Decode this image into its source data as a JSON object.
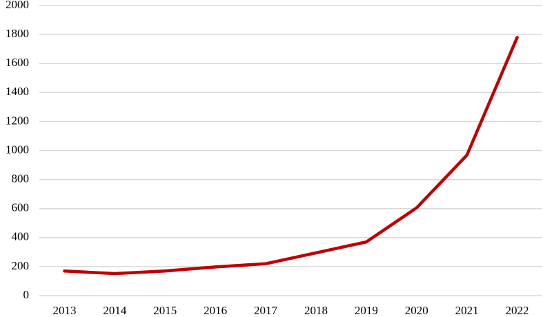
{
  "chart_data": {
    "type": "line",
    "categories": [
      "2013",
      "2014",
      "2015",
      "2016",
      "2017",
      "2018",
      "2019",
      "2020",
      "2021",
      "2022"
    ],
    "values": [
      170,
      152,
      170,
      198,
      220,
      295,
      370,
      605,
      968,
      1780
    ],
    "color": "#c00000",
    "ylim": [
      0,
      2000
    ],
    "yticks": [
      0,
      200,
      400,
      600,
      800,
      1000,
      1200,
      1400,
      1600,
      1800,
      2000
    ],
    "grid": true
  }
}
